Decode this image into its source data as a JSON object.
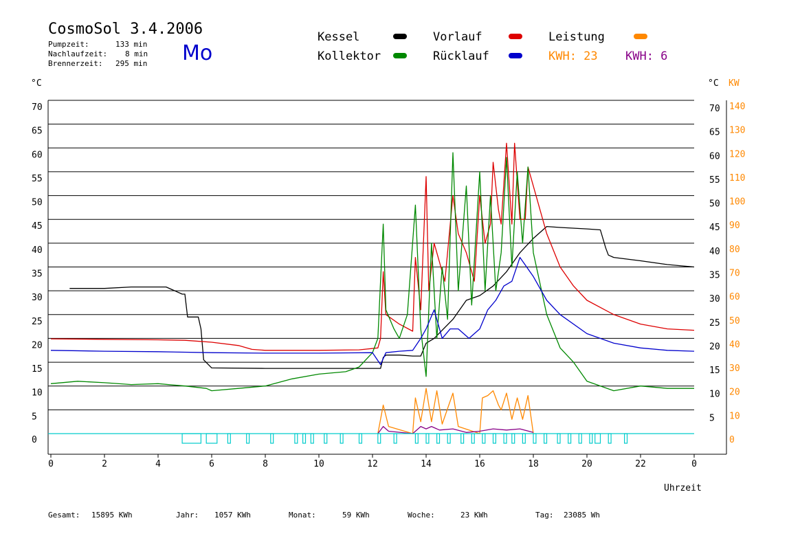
{
  "title": "CosmoSol 3.4.2006",
  "day": "Mo",
  "stats": [
    {
      "label": "Pumpzeit:",
      "value": "133 min"
    },
    {
      "label": "Nachlaufzeit:",
      "value": "8 min"
    },
    {
      "label": "Brennerzeit:",
      "value": "295 min"
    }
  ],
  "legend": [
    {
      "name": "Kessel",
      "color": "#000000"
    },
    {
      "name": "Vorlauf",
      "color": "#dd0000"
    },
    {
      "name": "Leistung",
      "color": "#ff8800"
    },
    {
      "name": "Kollektor",
      "color": "#008800"
    },
    {
      "name": "Rücklauf",
      "color": "#0000cc"
    }
  ],
  "kwh_labels": [
    {
      "text": "KWH: 23",
      "color": "#ff8800"
    },
    {
      "text": "KWH: 6",
      "color": "#880088"
    }
  ],
  "footer": [
    {
      "label": "Gesamt:",
      "value": "15895 KWh"
    },
    {
      "label": "Jahr:",
      "value": "1057 KWh"
    },
    {
      "label": "Monat:",
      "value": "59 KWh"
    },
    {
      "label": "Woche:",
      "value": "23 KWh"
    },
    {
      "label": "Tag:",
      "value": "23085 Wh"
    }
  ],
  "chart_data": {
    "type": "line",
    "xlabel": "Uhrzeit",
    "ylabel_left": "°C",
    "ylabel_right": "°C",
    "ylabel_right2": "KW",
    "xlim": [
      0,
      24
    ],
    "ylim": [
      0,
      70
    ],
    "y2lim": [
      0,
      140
    ],
    "x_ticks": [
      "0",
      "2",
      "4",
      "6",
      "8",
      "10",
      "12",
      "14",
      "16",
      "18",
      "20",
      "22",
      "0"
    ],
    "y_ticks": [
      "0",
      "5",
      "10",
      "15",
      "20",
      "25",
      "30",
      "35",
      "40",
      "45",
      "50",
      "55",
      "60",
      "65",
      "70"
    ],
    "y_ticks_right": [
      "5",
      "10",
      "15",
      "20",
      "25",
      "30",
      "35",
      "40",
      "45",
      "50",
      "55",
      "60",
      "65",
      "70"
    ],
    "y2_ticks": [
      "0",
      "10",
      "20",
      "30",
      "40",
      "50",
      "60",
      "70",
      "80",
      "90",
      "100",
      "110",
      "120",
      "130",
      "140"
    ],
    "grid": true,
    "series": [
      {
        "name": "Kessel",
        "color": "#000000",
        "points": [
          [
            0.7,
            30.5
          ],
          [
            2,
            30.5
          ],
          [
            3,
            30.8
          ],
          [
            4.3,
            30.8
          ],
          [
            4.9,
            29.3
          ],
          [
            5,
            29.3
          ],
          [
            5.1,
            24.5
          ],
          [
            5.5,
            24.5
          ],
          [
            5.6,
            22
          ],
          [
            5.7,
            15.5
          ],
          [
            6,
            13.8
          ],
          [
            8,
            13.7
          ],
          [
            10,
            13.7
          ],
          [
            11.5,
            13.7
          ],
          [
            12.3,
            13.7
          ],
          [
            12.4,
            16
          ],
          [
            12.5,
            16.5
          ],
          [
            13,
            16.5
          ],
          [
            13.5,
            16.3
          ],
          [
            13.8,
            16.3
          ],
          [
            14,
            19
          ],
          [
            14.3,
            20
          ],
          [
            15,
            24
          ],
          [
            15.5,
            28
          ],
          [
            16,
            29
          ],
          [
            16.5,
            31
          ],
          [
            17,
            34
          ],
          [
            17.5,
            38
          ],
          [
            18,
            41
          ],
          [
            18.5,
            43.5
          ],
          [
            19,
            43.3
          ],
          [
            20,
            43
          ],
          [
            20.5,
            42.8
          ],
          [
            20.7,
            39
          ],
          [
            20.8,
            37.5
          ],
          [
            21,
            37
          ],
          [
            22,
            36.3
          ],
          [
            23,
            35.5
          ],
          [
            24,
            35
          ]
        ]
      },
      {
        "name": "Vorlauf",
        "color": "#dd0000",
        "points": [
          [
            0,
            19.9
          ],
          [
            2,
            19.8
          ],
          [
            4,
            19.7
          ],
          [
            5,
            19.6
          ],
          [
            6,
            19.2
          ],
          [
            7,
            18.5
          ],
          [
            7.5,
            17.7
          ],
          [
            8,
            17.5
          ],
          [
            10,
            17.5
          ],
          [
            11.5,
            17.6
          ],
          [
            12.2,
            18
          ],
          [
            12.3,
            20
          ],
          [
            12.4,
            34
          ],
          [
            12.5,
            25
          ],
          [
            13,
            23
          ],
          [
            13.5,
            21.5
          ],
          [
            13.6,
            37
          ],
          [
            13.8,
            26
          ],
          [
            14,
            54
          ],
          [
            14.1,
            30
          ],
          [
            14.3,
            40
          ],
          [
            14.5,
            36
          ],
          [
            14.7,
            32
          ],
          [
            15,
            50
          ],
          [
            15.2,
            42
          ],
          [
            15.5,
            38
          ],
          [
            15.8,
            32
          ],
          [
            16,
            50
          ],
          [
            16.2,
            40
          ],
          [
            16.4,
            44
          ],
          [
            16.5,
            57
          ],
          [
            16.7,
            47
          ],
          [
            16.8,
            44
          ],
          [
            17,
            61
          ],
          [
            17.2,
            44
          ],
          [
            17.3,
            61
          ],
          [
            17.5,
            45
          ],
          [
            17.7,
            45
          ],
          [
            17.8,
            56
          ],
          [
            18,
            52
          ],
          [
            18.5,
            42
          ],
          [
            19,
            35
          ],
          [
            19.5,
            31
          ],
          [
            20,
            28
          ],
          [
            21,
            25
          ],
          [
            22,
            23
          ],
          [
            23,
            22
          ],
          [
            24,
            21.7
          ]
        ]
      },
      {
        "name": "Kollektor",
        "color": "#008800",
        "points": [
          [
            0,
            10.5
          ],
          [
            1,
            11
          ],
          [
            2,
            10.7
          ],
          [
            3,
            10.3
          ],
          [
            4,
            10.5
          ],
          [
            5,
            10
          ],
          [
            5.8,
            9.5
          ],
          [
            6,
            9
          ],
          [
            7,
            9.5
          ],
          [
            8,
            10
          ],
          [
            9,
            11.5
          ],
          [
            10,
            12.5
          ],
          [
            11,
            13
          ],
          [
            11.5,
            14
          ],
          [
            12,
            17
          ],
          [
            12.2,
            20
          ],
          [
            12.3,
            32
          ],
          [
            12.4,
            44
          ],
          [
            12.5,
            26
          ],
          [
            12.8,
            22
          ],
          [
            13,
            20
          ],
          [
            13.3,
            25
          ],
          [
            13.6,
            48
          ],
          [
            13.8,
            22
          ],
          [
            14,
            12
          ],
          [
            14.2,
            40
          ],
          [
            14.4,
            20
          ],
          [
            14.6,
            35
          ],
          [
            14.8,
            24
          ],
          [
            15,
            59
          ],
          [
            15.2,
            30
          ],
          [
            15.5,
            52
          ],
          [
            15.7,
            27
          ],
          [
            16,
            55
          ],
          [
            16.2,
            30
          ],
          [
            16.4,
            50
          ],
          [
            16.6,
            30
          ],
          [
            16.8,
            38
          ],
          [
            17,
            58
          ],
          [
            17.2,
            35
          ],
          [
            17.4,
            55
          ],
          [
            17.6,
            40
          ],
          [
            17.8,
            56
          ],
          [
            18,
            38
          ],
          [
            18.5,
            25
          ],
          [
            19,
            18
          ],
          [
            19.5,
            15
          ],
          [
            20,
            11
          ],
          [
            21,
            9
          ],
          [
            22,
            10
          ],
          [
            23,
            9.5
          ],
          [
            24,
            9.5
          ]
        ]
      },
      {
        "name": "Rücklauf",
        "color": "#0000cc",
        "points": [
          [
            0,
            17.5
          ],
          [
            2,
            17.3
          ],
          [
            4,
            17.2
          ],
          [
            6,
            17
          ],
          [
            8,
            16.9
          ],
          [
            10,
            16.9
          ],
          [
            12,
            17
          ],
          [
            12.3,
            14.5
          ],
          [
            12.5,
            17
          ],
          [
            13,
            17.3
          ],
          [
            13.5,
            17.5
          ],
          [
            13.8,
            20
          ],
          [
            14,
            22
          ],
          [
            14.3,
            26
          ],
          [
            14.6,
            20
          ],
          [
            14.9,
            22
          ],
          [
            15.2,
            22
          ],
          [
            15.6,
            20
          ],
          [
            16,
            22
          ],
          [
            16.3,
            26
          ],
          [
            16.6,
            28
          ],
          [
            16.9,
            31
          ],
          [
            17.2,
            32
          ],
          [
            17.5,
            37
          ],
          [
            18,
            33
          ],
          [
            18.5,
            28
          ],
          [
            19,
            25
          ],
          [
            20,
            21
          ],
          [
            21,
            19
          ],
          [
            22,
            18
          ],
          [
            23,
            17.5
          ],
          [
            24,
            17.3
          ]
        ]
      },
      {
        "name": "Leistung",
        "color": "#ff8800",
        "axis": "KW",
        "points": [
          [
            12.2,
            0
          ],
          [
            12.3,
            6
          ],
          [
            12.4,
            12
          ],
          [
            12.6,
            3
          ],
          [
            13.5,
            0
          ],
          [
            13.6,
            15
          ],
          [
            13.8,
            5
          ],
          [
            14,
            19
          ],
          [
            14.2,
            5
          ],
          [
            14.4,
            18
          ],
          [
            14.6,
            4
          ],
          [
            15,
            17
          ],
          [
            15.2,
            3
          ],
          [
            16,
            0
          ],
          [
            16.1,
            15
          ],
          [
            16.3,
            16
          ],
          [
            16.5,
            18
          ],
          [
            16.7,
            12
          ],
          [
            16.8,
            10
          ],
          [
            17,
            17
          ],
          [
            17.2,
            6
          ],
          [
            17.4,
            15
          ],
          [
            17.6,
            6
          ],
          [
            17.8,
            16
          ],
          [
            18,
            0
          ]
        ]
      },
      {
        "name": "KWH",
        "color": "#880088",
        "axis": "KW",
        "points": [
          [
            12.2,
            0
          ],
          [
            12.4,
            3
          ],
          [
            12.6,
            1
          ],
          [
            13.5,
            0
          ],
          [
            13.8,
            3
          ],
          [
            14,
            2
          ],
          [
            14.2,
            3
          ],
          [
            14.5,
            1.5
          ],
          [
            15,
            2
          ],
          [
            15.5,
            0.5
          ],
          [
            16,
            1
          ],
          [
            16.5,
            2
          ],
          [
            17,
            1.5
          ],
          [
            17.5,
            2
          ],
          [
            18,
            0.5
          ]
        ]
      }
    ],
    "status_bar": [
      [
        4.9,
        5.6
      ],
      [
        5.8,
        6.2
      ],
      [
        6.6,
        6.7
      ],
      [
        7.3,
        7.4
      ],
      [
        8.2,
        8.3
      ],
      [
        9.1,
        9.2
      ],
      [
        9.4,
        9.5
      ],
      [
        9.7,
        9.8
      ],
      [
        10.2,
        10.3
      ],
      [
        10.8,
        10.9
      ],
      [
        11.5,
        11.6
      ],
      [
        12.2,
        12.3
      ],
      [
        12.8,
        12.9
      ],
      [
        13.6,
        13.7
      ],
      [
        14,
        14.1
      ],
      [
        14.4,
        14.5
      ],
      [
        14.8,
        14.9
      ],
      [
        15.3,
        15.4
      ],
      [
        15.7,
        15.8
      ],
      [
        16.1,
        16.2
      ],
      [
        16.5,
        16.6
      ],
      [
        16.9,
        17
      ],
      [
        17.2,
        17.3
      ],
      [
        17.6,
        17.7
      ],
      [
        18,
        18.1
      ],
      [
        18.4,
        18.5
      ],
      [
        18.9,
        19
      ],
      [
        19.3,
        19.4
      ],
      [
        19.7,
        19.8
      ],
      [
        20.1,
        20.2
      ],
      [
        20.3,
        20.5
      ],
      [
        20.8,
        20.9
      ],
      [
        21.4,
        21.5
      ]
    ]
  }
}
